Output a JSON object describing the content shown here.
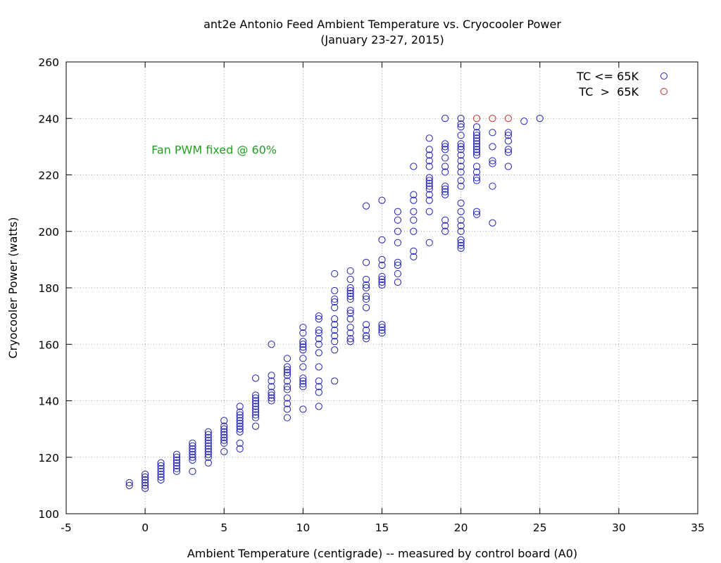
{
  "chart_data": {
    "type": "scatter",
    "title": "ant2e Antonio Feed Ambient Temperature vs. Cryocooler Power",
    "subtitle": "(January 23-27, 2015)",
    "xlabel": "Ambient Temperature (centigrade) -- measured by control board (A0)",
    "ylabel": "Cryocooler Power (watts)",
    "xlim": [
      -5,
      35
    ],
    "ylim": [
      100,
      260
    ],
    "xticks": [
      "-5",
      "0",
      "5",
      "10",
      "15",
      "20",
      "25",
      "30",
      "35"
    ],
    "yticks": [
      "100",
      "120",
      "140",
      "160",
      "180",
      "200",
      "220",
      "240",
      "260"
    ],
    "grid": true,
    "legend_position": "top-right",
    "annotation": {
      "text": "Fan PWM fixed @ 60%",
      "x": 0.4,
      "y": 229,
      "color": "#22a022"
    },
    "series": [
      {
        "name": "TC <= 65K",
        "color": "#2020b0",
        "points": [
          [
            -1,
            110
          ],
          [
            -1,
            111
          ],
          [
            0,
            109
          ],
          [
            0,
            110
          ],
          [
            0,
            111
          ],
          [
            0,
            112
          ],
          [
            0,
            113
          ],
          [
            0,
            114
          ],
          [
            1,
            112
          ],
          [
            1,
            113
          ],
          [
            1,
            114
          ],
          [
            1,
            115
          ],
          [
            1,
            116
          ],
          [
            1,
            117
          ],
          [
            1,
            118
          ],
          [
            2,
            115
          ],
          [
            2,
            116
          ],
          [
            2,
            117
          ],
          [
            2,
            118
          ],
          [
            2,
            119
          ],
          [
            2,
            120
          ],
          [
            2,
            121
          ],
          [
            3,
            115
          ],
          [
            3,
            119
          ],
          [
            3,
            120
          ],
          [
            3,
            121
          ],
          [
            3,
            122
          ],
          [
            3,
            123
          ],
          [
            3,
            124
          ],
          [
            3,
            125
          ],
          [
            4,
            118
          ],
          [
            4,
            120
          ],
          [
            4,
            121
          ],
          [
            4,
            122
          ],
          [
            4,
            123
          ],
          [
            4,
            124
          ],
          [
            4,
            125
          ],
          [
            4,
            126
          ],
          [
            4,
            127
          ],
          [
            4,
            128
          ],
          [
            4,
            129
          ],
          [
            5,
            122
          ],
          [
            5,
            125
          ],
          [
            5,
            126
          ],
          [
            5,
            127
          ],
          [
            5,
            128
          ],
          [
            5,
            129
          ],
          [
            5,
            130
          ],
          [
            5,
            131
          ],
          [
            5,
            133
          ],
          [
            6,
            123
          ],
          [
            6,
            125
          ],
          [
            6,
            129
          ],
          [
            6,
            130
          ],
          [
            6,
            131
          ],
          [
            6,
            132
          ],
          [
            6,
            133
          ],
          [
            6,
            134
          ],
          [
            6,
            135
          ],
          [
            6,
            136
          ],
          [
            6,
            138
          ],
          [
            7,
            131
          ],
          [
            7,
            134
          ],
          [
            7,
            135
          ],
          [
            7,
            136
          ],
          [
            7,
            137
          ],
          [
            7,
            138
          ],
          [
            7,
            139
          ],
          [
            7,
            140
          ],
          [
            7,
            141
          ],
          [
            7,
            142
          ],
          [
            7,
            148
          ],
          [
            8,
            140
          ],
          [
            8,
            141
          ],
          [
            8,
            142
          ],
          [
            8,
            143
          ],
          [
            8,
            145
          ],
          [
            8,
            147
          ],
          [
            8,
            149
          ],
          [
            8,
            160
          ],
          [
            9,
            134
          ],
          [
            9,
            137
          ],
          [
            9,
            139
          ],
          [
            9,
            141
          ],
          [
            9,
            144
          ],
          [
            9,
            145
          ],
          [
            9,
            147
          ],
          [
            9,
            149
          ],
          [
            9,
            150
          ],
          [
            9,
            151
          ],
          [
            9,
            152
          ],
          [
            9,
            155
          ],
          [
            10,
            137
          ],
          [
            10,
            145
          ],
          [
            10,
            146
          ],
          [
            10,
            147
          ],
          [
            10,
            148
          ],
          [
            10,
            152
          ],
          [
            10,
            155
          ],
          [
            10,
            158
          ],
          [
            10,
            159
          ],
          [
            10,
            160
          ],
          [
            10,
            161
          ],
          [
            10,
            164
          ],
          [
            10,
            166
          ],
          [
            11,
            138
          ],
          [
            11,
            143
          ],
          [
            11,
            145
          ],
          [
            11,
            147
          ],
          [
            11,
            152
          ],
          [
            11,
            157
          ],
          [
            11,
            160
          ],
          [
            11,
            162
          ],
          [
            11,
            164
          ],
          [
            11,
            165
          ],
          [
            11,
            169
          ],
          [
            11,
            170
          ],
          [
            12,
            147
          ],
          [
            12,
            158
          ],
          [
            12,
            161
          ],
          [
            12,
            163
          ],
          [
            12,
            165
          ],
          [
            12,
            167
          ],
          [
            12,
            169
          ],
          [
            12,
            173
          ],
          [
            12,
            175
          ],
          [
            12,
            176
          ],
          [
            12,
            179
          ],
          [
            12,
            185
          ],
          [
            13,
            161
          ],
          [
            13,
            162
          ],
          [
            13,
            164
          ],
          [
            13,
            166
          ],
          [
            13,
            169
          ],
          [
            13,
            171
          ],
          [
            13,
            172
          ],
          [
            13,
            176
          ],
          [
            13,
            177
          ],
          [
            13,
            178
          ],
          [
            13,
            179
          ],
          [
            13,
            180
          ],
          [
            13,
            183
          ],
          [
            13,
            186
          ],
          [
            14,
            162
          ],
          [
            14,
            163
          ],
          [
            14,
            165
          ],
          [
            14,
            167
          ],
          [
            14,
            173
          ],
          [
            14,
            176
          ],
          [
            14,
            177
          ],
          [
            14,
            180
          ],
          [
            14,
            181
          ],
          [
            14,
            183
          ],
          [
            14,
            189
          ],
          [
            14,
            209
          ],
          [
            15,
            164
          ],
          [
            15,
            165
          ],
          [
            15,
            166
          ],
          [
            15,
            167
          ],
          [
            15,
            181
          ],
          [
            15,
            182
          ],
          [
            15,
            183
          ],
          [
            15,
            184
          ],
          [
            15,
            188
          ],
          [
            15,
            190
          ],
          [
            15,
            197
          ],
          [
            15,
            211
          ],
          [
            16,
            182
          ],
          [
            16,
            185
          ],
          [
            16,
            188
          ],
          [
            16,
            189
          ],
          [
            16,
            196
          ],
          [
            16,
            200
          ],
          [
            16,
            204
          ],
          [
            16,
            207
          ],
          [
            17,
            191
          ],
          [
            17,
            193
          ],
          [
            17,
            200
          ],
          [
            17,
            204
          ],
          [
            17,
            207
          ],
          [
            17,
            211
          ],
          [
            17,
            213
          ],
          [
            17,
            223
          ],
          [
            18,
            196
          ],
          [
            18,
            207
          ],
          [
            18,
            211
          ],
          [
            18,
            213
          ],
          [
            18,
            215
          ],
          [
            18,
            216
          ],
          [
            18,
            217
          ],
          [
            18,
            218
          ],
          [
            18,
            219
          ],
          [
            18,
            223
          ],
          [
            18,
            225
          ],
          [
            18,
            227
          ],
          [
            18,
            229
          ],
          [
            18,
            233
          ],
          [
            19,
            200
          ],
          [
            19,
            202
          ],
          [
            19,
            204
          ],
          [
            19,
            213
          ],
          [
            19,
            214
          ],
          [
            19,
            215
          ],
          [
            19,
            216
          ],
          [
            19,
            221
          ],
          [
            19,
            223
          ],
          [
            19,
            226
          ],
          [
            19,
            229
          ],
          [
            19,
            230
          ],
          [
            19,
            231
          ],
          [
            19,
            240
          ],
          [
            20,
            194
          ],
          [
            20,
            195
          ],
          [
            20,
            196
          ],
          [
            20,
            197
          ],
          [
            20,
            200
          ],
          [
            20,
            202
          ],
          [
            20,
            204
          ],
          [
            20,
            207
          ],
          [
            20,
            210
          ],
          [
            20,
            216
          ],
          [
            20,
            218
          ],
          [
            20,
            221
          ],
          [
            20,
            223
          ],
          [
            20,
            225
          ],
          [
            20,
            227
          ],
          [
            20,
            229
          ],
          [
            20,
            230
          ],
          [
            20,
            231
          ],
          [
            20,
            234
          ],
          [
            20,
            237
          ],
          [
            20,
            238
          ],
          [
            20,
            240
          ],
          [
            21,
            206
          ],
          [
            21,
            207
          ],
          [
            21,
            218
          ],
          [
            21,
            219
          ],
          [
            21,
            221
          ],
          [
            21,
            223
          ],
          [
            21,
            227
          ],
          [
            21,
            228
          ],
          [
            21,
            229
          ],
          [
            21,
            230
          ],
          [
            21,
            231
          ],
          [
            21,
            232
          ],
          [
            21,
            233
          ],
          [
            21,
            234
          ],
          [
            21,
            235
          ],
          [
            21,
            237
          ],
          [
            22,
            203
          ],
          [
            22,
            216
          ],
          [
            22,
            224
          ],
          [
            22,
            225
          ],
          [
            22,
            230
          ],
          [
            22,
            235
          ],
          [
            23,
            223
          ],
          [
            23,
            228
          ],
          [
            23,
            229
          ],
          [
            23,
            232
          ],
          [
            23,
            234
          ],
          [
            23,
            235
          ],
          [
            24,
            239
          ],
          [
            25,
            240
          ]
        ]
      },
      {
        "name": "TC  >  65K",
        "color": "#c03030",
        "points": [
          [
            21,
            240
          ],
          [
            22,
            240
          ],
          [
            23,
            240
          ]
        ]
      }
    ]
  }
}
